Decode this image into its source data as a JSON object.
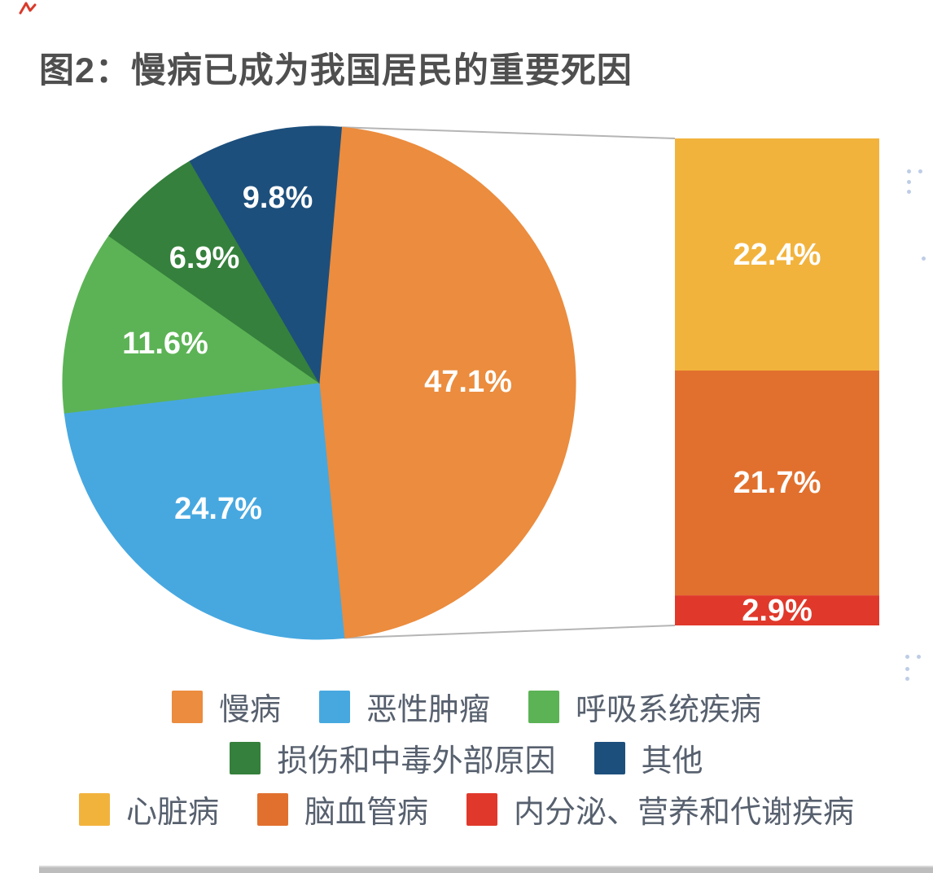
{
  "page": {
    "title": "图2：慢病已成为我国居民的重要死因"
  },
  "chart_data": {
    "type": "pie",
    "subtype": "bar-of-pie",
    "title": "图2：慢病已成为我国居民的重要死因",
    "unit": "%",
    "pie_series": [
      {
        "label": "慢病",
        "value": 47.1,
        "color": "#EB8C3E"
      },
      {
        "label": "恶性肿瘤",
        "value": 24.7,
        "color": "#47A8E0"
      },
      {
        "label": "呼吸系统疾病",
        "value": 11.6,
        "color": "#5CB355"
      },
      {
        "label": "损伤和中毒外部原因",
        "value": 6.9,
        "color": "#35803C"
      },
      {
        "label": "其他",
        "value": 9.8,
        "color": "#1D4F7C"
      }
    ],
    "bar_of_pie": {
      "parent_label": "慢病",
      "segments": [
        {
          "label": "心脏病",
          "value": 22.4,
          "color": "#F2B33D"
        },
        {
          "label": "脑血管病",
          "value": 21.7,
          "color": "#E1702E"
        },
        {
          "label": "内分泌、营养和代谢疾病",
          "value": 2.9,
          "color": "#E0392B"
        }
      ]
    },
    "data_label_format": "value%",
    "legend_rows": [
      [
        "慢病",
        "恶性肿瘤",
        "呼吸系统疾病"
      ],
      [
        "损伤和中毒外部原因",
        "其他"
      ],
      [
        "心脏病",
        "脑血管病",
        "内分泌、营养和代谢疾病"
      ]
    ],
    "legend_position": "bottom",
    "grid": false
  },
  "colors": {
    "title_text": "#4F4F4F",
    "legend_text": "#57606E",
    "data_label_text": "#FFFFFF",
    "connector_line": "#B5B5B5",
    "bottom_divider": "#BDBDBD",
    "annotation_red": "#D93A2B"
  }
}
